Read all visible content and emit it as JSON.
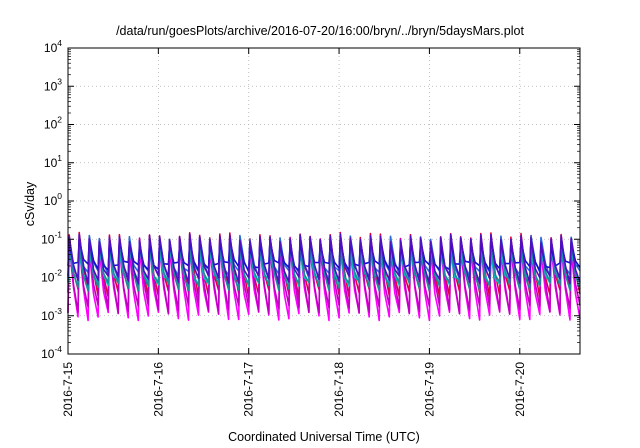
{
  "chart_data": {
    "type": "line",
    "title": "/data/run/goesPlots/archive/2016-07-20/16:00/bryn/../bryn/5daysMars.plot",
    "xlabel": "Coordinated Universal Time (UTC)",
    "ylabel": "cSv/day",
    "y_scale": "log",
    "ylim": [
      0.0001,
      10000
    ],
    "y_ticks": [
      {
        "base": "10",
        "exp": "4"
      },
      {
        "base": "10",
        "exp": "3"
      },
      {
        "base": "10",
        "exp": "2"
      },
      {
        "base": "10",
        "exp": "1"
      },
      {
        "base": "10",
        "exp": "0"
      },
      {
        "base": "10",
        "exp": "-1"
      },
      {
        "base": "10",
        "exp": "-2"
      },
      {
        "base": "10",
        "exp": "-3"
      },
      {
        "base": "10",
        "exp": "-4"
      }
    ],
    "x_ticks": [
      "2016-7-15",
      "2016-7-16",
      "2016-7-17",
      "2016-7-18",
      "2016-7-19",
      "2016-7-20"
    ],
    "xlim": [
      "2016-07-15 00:00",
      "2016-07-20 16:00"
    ],
    "grid": true,
    "pattern": "periodic sawtooth, approx. 9 cycles per day",
    "series": [
      {
        "color": "#e0003c",
        "peak": 0.12,
        "trough": 0.004
      },
      {
        "color": "#ff00ff",
        "peak": 0.06,
        "trough": 0.001
      },
      {
        "color": "#c000c0",
        "peak": 0.09,
        "trough": 0.0015
      },
      {
        "color": "#00c0c0",
        "peak": 0.05,
        "trough": 0.008
      },
      {
        "color": "#1a8c9a",
        "peak": 0.07,
        "trough": 0.006
      },
      {
        "color": "#2a6ad8",
        "peak": 0.1,
        "trough": 0.012
      },
      {
        "color": "#1010d0",
        "peak": 0.08,
        "trough": 0.02
      },
      {
        "color": "#5010c0",
        "peak": 0.11,
        "trough": 0.009
      }
    ]
  }
}
